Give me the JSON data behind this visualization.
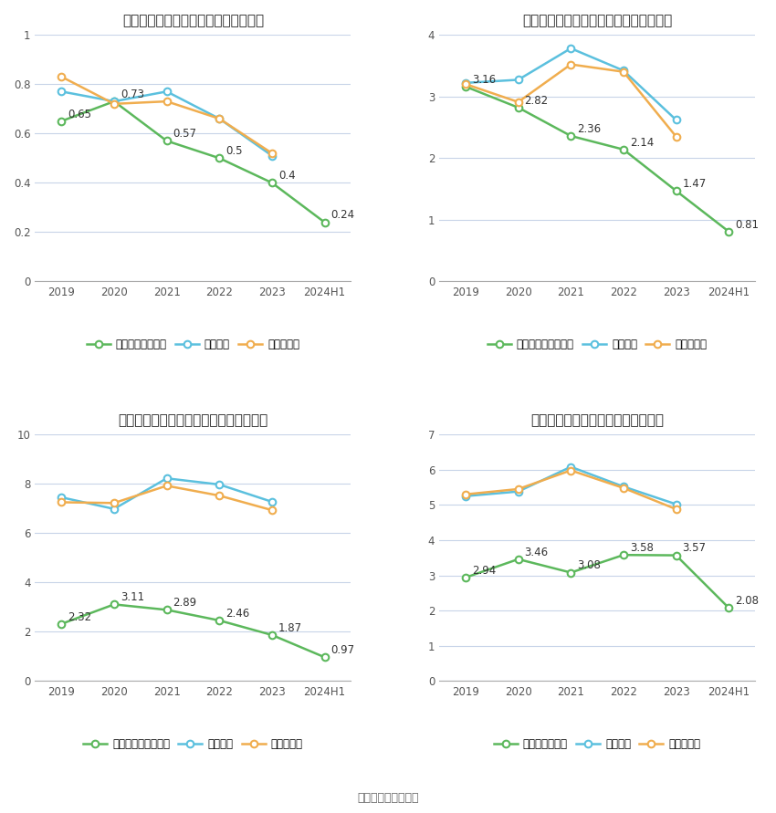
{
  "x_labels": [
    "2019",
    "2020",
    "2021",
    "2022",
    "2023",
    "2024H1"
  ],
  "charts": [
    {
      "title": "元琼科技历年总资产周转率情况（次）",
      "company_label": "公司总资产周转率",
      "company_values": [
        0.65,
        0.73,
        0.57,
        0.5,
        0.4,
        0.24
      ],
      "industry_avg": [
        0.77,
        0.73,
        0.77,
        0.66,
        0.51,
        null
      ],
      "industry_median": [
        0.83,
        0.72,
        0.73,
        0.66,
        0.52,
        null
      ],
      "ylim": [
        0,
        1.0
      ],
      "yticks": [
        0,
        0.2,
        0.4,
        0.6,
        0.8,
        1.0
      ],
      "ytick_labels": [
        "0",
        "0.2",
        "0.4",
        "0.6",
        "0.8",
        "1"
      ]
    },
    {
      "title": "元琼科技历年固定资产周转率情况（次）",
      "company_label": "公司固定资产周转率",
      "company_values": [
        3.16,
        2.82,
        2.36,
        2.14,
        1.47,
        0.81
      ],
      "industry_avg": [
        3.22,
        3.27,
        3.78,
        3.42,
        2.62,
        null
      ],
      "industry_median": [
        3.2,
        2.91,
        3.52,
        3.4,
        2.35,
        null
      ],
      "ylim": [
        0,
        4.0
      ],
      "yticks": [
        0,
        1,
        2,
        3,
        4
      ],
      "ytick_labels": [
        "0",
        "1",
        "2",
        "3",
        "4"
      ]
    },
    {
      "title": "元琼科技历年应收账款周转率情况（次）",
      "company_label": "公司应收账款周转率",
      "company_values": [
        2.32,
        3.11,
        2.89,
        2.46,
        1.87,
        0.97
      ],
      "industry_avg": [
        7.45,
        6.98,
        8.22,
        7.97,
        7.27,
        null
      ],
      "industry_median": [
        7.25,
        7.22,
        7.92,
        7.52,
        6.93,
        null
      ],
      "ylim": [
        0,
        10
      ],
      "yticks": [
        0,
        2,
        4,
        6,
        8,
        10
      ],
      "ytick_labels": [
        "0",
        "2",
        "4",
        "6",
        "8",
        "10"
      ]
    },
    {
      "title": "元琼科技历年存货周转率情况（次）",
      "company_label": "公司存货周转率",
      "company_values": [
        2.94,
        3.46,
        3.08,
        3.58,
        3.57,
        2.08
      ],
      "industry_avg": [
        5.25,
        5.38,
        6.08,
        5.52,
        5.02,
        null
      ],
      "industry_median": [
        5.3,
        5.45,
        5.98,
        5.48,
        4.88,
        null
      ],
      "ylim": [
        0,
        7
      ],
      "yticks": [
        0,
        1,
        2,
        3,
        4,
        5,
        6,
        7
      ],
      "ytick_labels": [
        "0",
        "1",
        "2",
        "3",
        "4",
        "5",
        "6",
        "7"
      ]
    }
  ],
  "colors": {
    "company": "#5cb85c",
    "industry_avg": "#5bc0de",
    "industry_median": "#f0ad4e"
  },
  "industry_avg_label": "行业均值",
  "industry_median_label": "行业中位数",
  "source_text": "数据来源：恒生聚源",
  "background_color": "#ffffff",
  "grid_color": "#c8d4e8"
}
